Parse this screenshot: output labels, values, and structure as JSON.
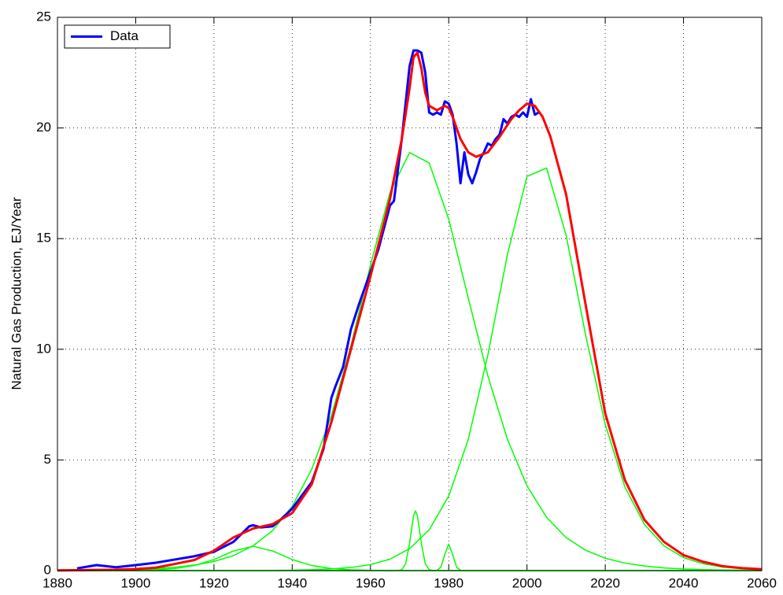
{
  "chart_data": {
    "type": "line",
    "y_label": "Natural Gas Production, EJ/Year",
    "xlim": [
      1880,
      2060
    ],
    "ylim": [
      0,
      25
    ],
    "xticks": [
      1880,
      1900,
      1920,
      1940,
      1960,
      1980,
      2000,
      2020,
      2040,
      2060
    ],
    "yticks": [
      0,
      5,
      10,
      15,
      20,
      25
    ],
    "grid": true,
    "legend": "upper left",
    "series": [
      {
        "name": "Data",
        "color": "#0000ff",
        "line_width": 3,
        "x": [
          1885,
          1890,
          1895,
          1900,
          1905,
          1910,
          1915,
          1920,
          1925,
          1929,
          1930,
          1932,
          1935,
          1937,
          1940,
          1945,
          1948,
          1950,
          1951,
          1953,
          1955,
          1957,
          1960,
          1962,
          1965,
          1966,
          1968,
          1970,
          1971,
          1972,
          1973,
          1974,
          1975,
          1976,
          1977,
          1978,
          1979,
          1980,
          1981,
          1982,
          1983,
          1984,
          1985,
          1986,
          1987,
          1988,
          1989,
          1990,
          1991,
          1992,
          1993,
          1994,
          1995,
          1996,
          1997,
          1998,
          1999,
          2000,
          2001,
          2002,
          2003
        ],
        "values": [
          0.1,
          0.25,
          0.15,
          0.25,
          0.35,
          0.5,
          0.65,
          0.85,
          1.3,
          2.0,
          2.05,
          1.95,
          2.0,
          2.3,
          2.8,
          4.0,
          5.5,
          7.8,
          8.3,
          9.2,
          10.9,
          12.0,
          13.5,
          14.5,
          16.5,
          16.7,
          19.5,
          22.8,
          23.5,
          23.5,
          23.4,
          22.5,
          20.7,
          20.6,
          20.7,
          20.6,
          21.2,
          21.1,
          20.6,
          19.3,
          17.5,
          18.9,
          17.9,
          17.5,
          18.0,
          18.6,
          18.9,
          19.3,
          19.2,
          19.5,
          19.7,
          20.4,
          20.2,
          20.5,
          20.6,
          20.5,
          20.7,
          20.5,
          21.3,
          20.6,
          20.7
        ]
      },
      {
        "color": "#ff0000",
        "line_width": 3,
        "x": [
          1880,
          1885,
          1890,
          1895,
          1900,
          1905,
          1910,
          1915,
          1920,
          1925,
          1930,
          1935,
          1940,
          1945,
          1950,
          1955,
          1960,
          1965,
          1968,
          1970,
          1971,
          1972,
          1973,
          1974,
          1975,
          1977,
          1979,
          1980,
          1981,
          1983,
          1985,
          1987,
          1990,
          1993,
          1996,
          1998,
          2000,
          2002,
          2004,
          2006,
          2010,
          2015,
          2020,
          2025,
          2030,
          2035,
          2040,
          2045,
          2050,
          2055,
          2060
        ],
        "values": [
          0.01,
          0.02,
          0.03,
          0.04,
          0.07,
          0.13,
          0.3,
          0.48,
          0.9,
          1.5,
          1.9,
          2.1,
          2.6,
          3.9,
          6.7,
          10.0,
          13.3,
          16.8,
          19.5,
          21.8,
          23.2,
          23.4,
          22.7,
          21.6,
          21.0,
          20.8,
          21.0,
          20.9,
          20.5,
          19.5,
          18.9,
          18.7,
          18.9,
          19.6,
          20.4,
          20.8,
          21.1,
          21.0,
          20.5,
          19.6,
          17.0,
          12.0,
          7.1,
          4.1,
          2.3,
          1.3,
          0.7,
          0.4,
          0.2,
          0.11,
          0.06
        ]
      },
      {
        "color": "#00ff00",
        "line_width": 1.5,
        "x": [
          1880,
          1885,
          1890,
          1895,
          1900,
          1905,
          1910,
          1915,
          1920,
          1925,
          1930,
          1935,
          1940,
          1945,
          1950,
          1955,
          1960,
          1965,
          1970,
          1975,
          1980,
          1985,
          1990,
          1995,
          2000,
          2005,
          2010,
          2015,
          2020,
          2025,
          2030,
          2035,
          2040,
          2045,
          2050,
          2055,
          2060
        ],
        "values": [
          0.007,
          0.012,
          0.02,
          0.033,
          0.056,
          0.09,
          0.15,
          0.25,
          0.41,
          0.68,
          1.12,
          1.81,
          2.91,
          4.58,
          6.99,
          10.16,
          13.81,
          17.09,
          18.89,
          18.42,
          15.88,
          12.31,
          8.8,
          5.93,
          3.83,
          2.41,
          1.49,
          0.92,
          0.56,
          0.34,
          0.21,
          0.12,
          0.075,
          0.045,
          0.027,
          0.017,
          0.01
        ]
      },
      {
        "color": "#00ff00",
        "line_width": 1.5,
        "x": [
          1880,
          1885,
          1890,
          1895,
          1900,
          1905,
          1910,
          1915,
          1920,
          1925,
          1930,
          1935,
          1940,
          1945,
          1950,
          1955,
          1960,
          1965,
          1970,
          1975,
          1980,
          1985,
          1990,
          1995,
          2000,
          2005,
          2010,
          2015,
          2020,
          2025,
          2030,
          2035,
          2040,
          2045,
          2050,
          2055,
          2060
        ],
        "values": [
          0,
          0,
          0,
          0,
          0,
          0,
          0,
          0,
          0.001,
          0.003,
          0.005,
          0.01,
          0.02,
          0.039,
          0.075,
          0.14,
          0.27,
          0.52,
          0.99,
          1.84,
          3.37,
          5.93,
          9.74,
          14.28,
          17.81,
          18.19,
          15.15,
          10.63,
          6.6,
          3.79,
          2.09,
          1.12,
          0.59,
          0.31,
          0.16,
          0.086,
          0.045
        ]
      },
      {
        "color": "#00ff00",
        "line_width": 1.5,
        "x": [
          1880,
          1885,
          1890,
          1895,
          1900,
          1905,
          1910,
          1915,
          1920,
          1925,
          1930,
          1935,
          1940,
          1945,
          1950,
          1955,
          1960,
          1965,
          1970,
          1975,
          1980,
          2060
        ],
        "values": [
          0,
          0.001,
          0.002,
          0.006,
          0.015,
          0.037,
          0.094,
          0.23,
          0.5,
          0.885,
          1.1,
          0.885,
          0.5,
          0.23,
          0.094,
          0.037,
          0.015,
          0.006,
          0.002,
          0.001,
          0,
          0
        ]
      },
      {
        "color": "#00ff00",
        "line_width": 1.5,
        "x": [
          1880,
          1966,
          1967,
          1968,
          1969,
          1970,
          1971,
          1971.5,
          1972,
          1973,
          1974,
          1975,
          1976,
          1977,
          2060
        ],
        "values": [
          0,
          0,
          0.002,
          0.04,
          0.31,
          1.24,
          2.47,
          2.7,
          2.47,
          1.24,
          0.31,
          0.04,
          0.002,
          0,
          0
        ]
      },
      {
        "color": "#00ff00",
        "line_width": 1.5,
        "x": [
          1880,
          1976,
          1977,
          1978,
          1979,
          1980,
          1981,
          1982,
          1983,
          1984,
          2060
        ],
        "values": [
          0,
          0,
          0.013,
          0.16,
          0.73,
          1.2,
          0.73,
          0.16,
          0.013,
          0,
          0
        ]
      }
    ]
  }
}
